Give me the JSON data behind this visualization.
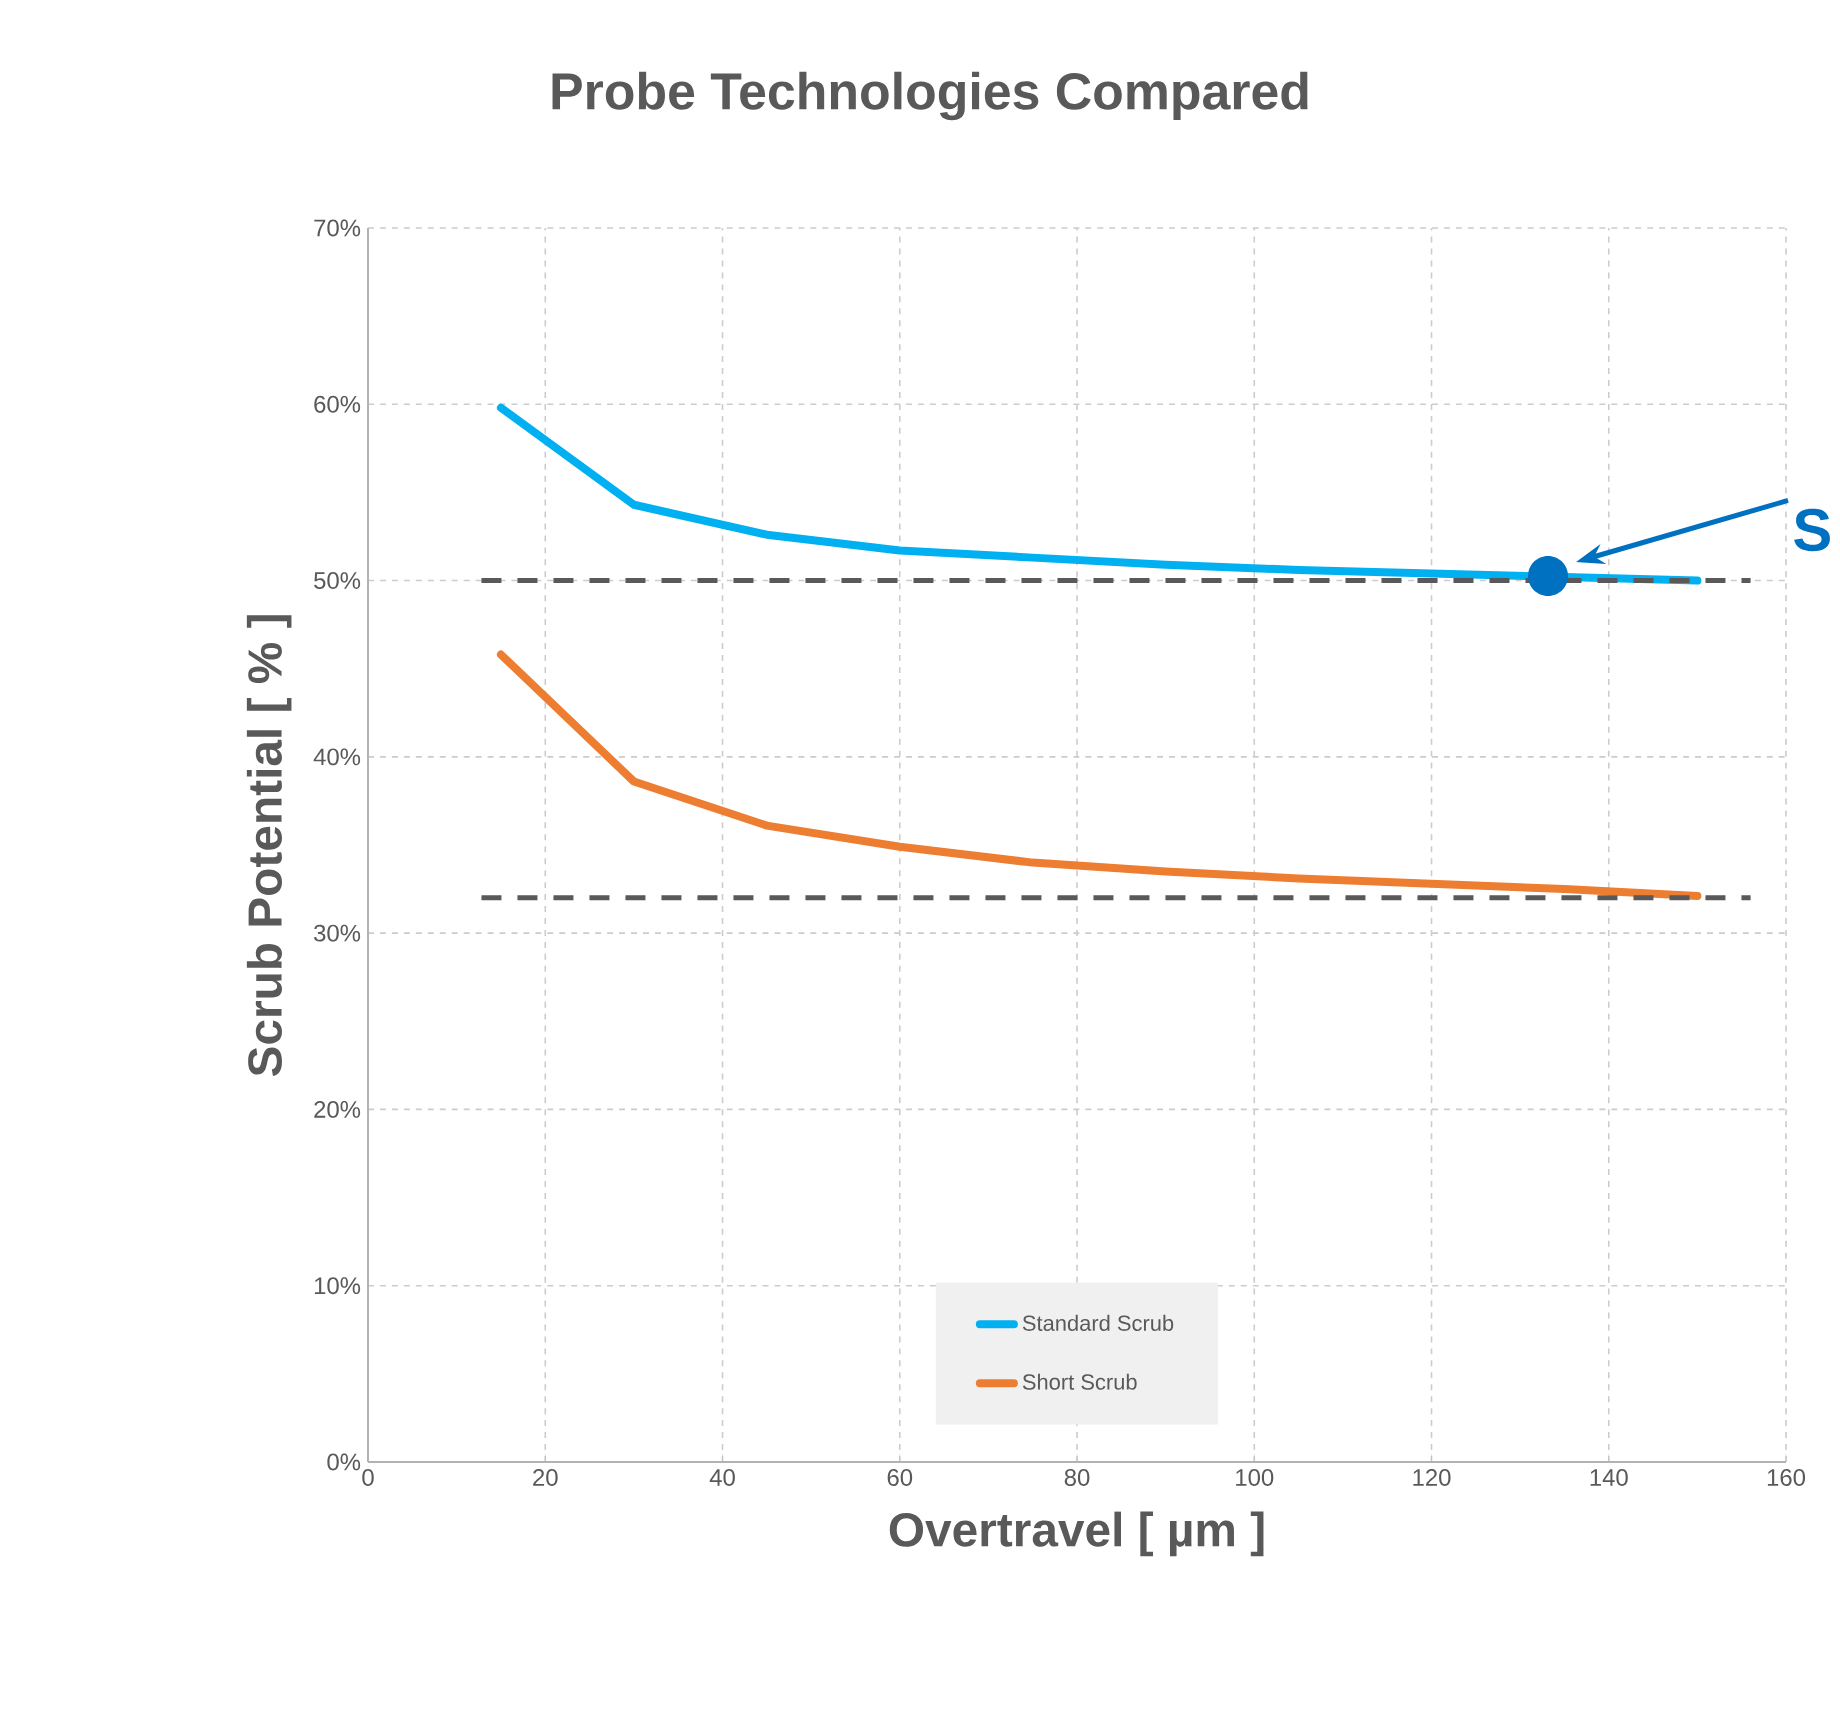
{
  "chart_data": {
    "type": "line",
    "title": "Probe Technologies Compared",
    "xlabel": "Overtravel [ µm ]",
    "ylabel": "Scrub Potential [ % ]",
    "x": [
      15,
      30,
      45,
      60,
      75,
      90,
      105,
      120,
      135,
      150
    ],
    "series": [
      {
        "name": "Standard Scrub",
        "color": "#00b0f0",
        "values": [
          59.8,
          54.3,
          52.6,
          51.7,
          51.3,
          50.9,
          50.6,
          50.4,
          50.2,
          50.0
        ]
      },
      {
        "name": "Short Scrub",
        "color": "#ed7d31",
        "values": [
          45.8,
          38.6,
          36.1,
          34.9,
          34.0,
          33.5,
          33.1,
          32.8,
          32.5,
          32.1
        ]
      }
    ],
    "xlim": [
      0,
      160
    ],
    "xticks": [
      0,
      20,
      40,
      60,
      80,
      100,
      120,
      140,
      160
    ],
    "ylim": [
      0,
      70
    ],
    "yticks": [
      {
        "value": 0,
        "label": "0%"
      },
      {
        "value": 10,
        "label": "10%"
      },
      {
        "value": 20,
        "label": "20%"
      },
      {
        "value": 30,
        "label": "30%"
      },
      {
        "value": 40,
        "label": "40%"
      },
      {
        "value": 50,
        "label": "50%"
      },
      {
        "value": 60,
        "label": "60%"
      },
      {
        "value": 70,
        "label": "70%"
      }
    ],
    "ref_lines": [
      {
        "axis": "y",
        "value": 50,
        "color": "#595959",
        "line_style": "dashed"
      },
      {
        "axis": "y",
        "value": 32,
        "color": "#595959",
        "line_style": "dashed"
      }
    ],
    "annotations": [
      "S"
    ],
    "grid": true,
    "legend": "bottom",
    "marker": "none",
    "line_style": "solid"
  }
}
